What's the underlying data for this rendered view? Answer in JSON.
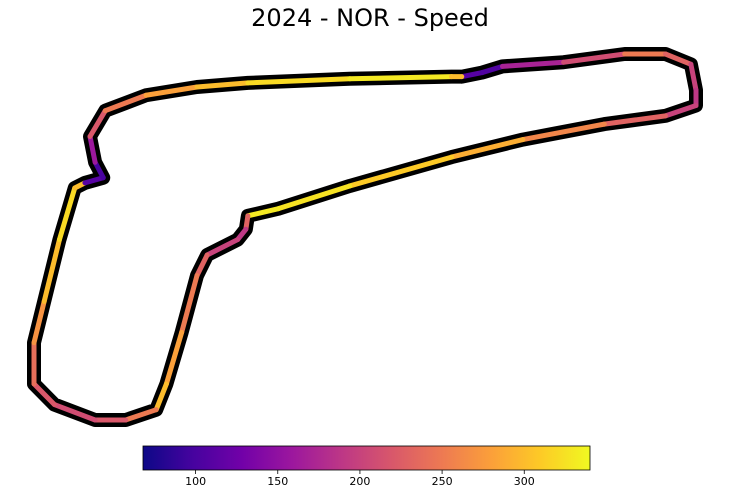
{
  "chart_data": {
    "type": "track",
    "title": "2024 - NOR - Speed",
    "colormap": "plasma",
    "x": [
      460,
      480,
      500,
      560,
      620,
      660,
      685,
      690,
      690,
      660,
      600,
      520,
      450,
      350,
      280,
      250,
      248,
      240,
      210,
      200,
      185,
      170,
      160,
      130,
      100,
      60,
      40,
      40,
      50,
      65,
      80,
      90,
      108,
      100,
      95,
      110,
      150,
      200,
      250,
      350,
      450,
      460
    ],
    "y": [
      82,
      78,
      72,
      68,
      60,
      60,
      70,
      95,
      110,
      120,
      128,
      143,
      160,
      188,
      210,
      217,
      230,
      240,
      255,
      275,
      330,
      380,
      405,
      415,
      415,
      400,
      380,
      340,
      300,
      240,
      190,
      185,
      180,
      165,
      140,
      115,
      100,
      92,
      88,
      84,
      82,
      82
    ],
    "speed": [
      110,
      105,
      170,
      210,
      250,
      230,
      200,
      190,
      200,
      230,
      260,
      290,
      310,
      325,
      330,
      230,
      190,
      200,
      230,
      250,
      280,
      300,
      250,
      220,
      210,
      220,
      240,
      270,
      300,
      320,
      300,
      110,
      100,
      160,
      220,
      250,
      280,
      300,
      320,
      330,
      300,
      110
    ],
    "clim": [
      68,
      340
    ],
    "cticks": [
      100,
      150,
      200,
      250,
      300
    ]
  }
}
